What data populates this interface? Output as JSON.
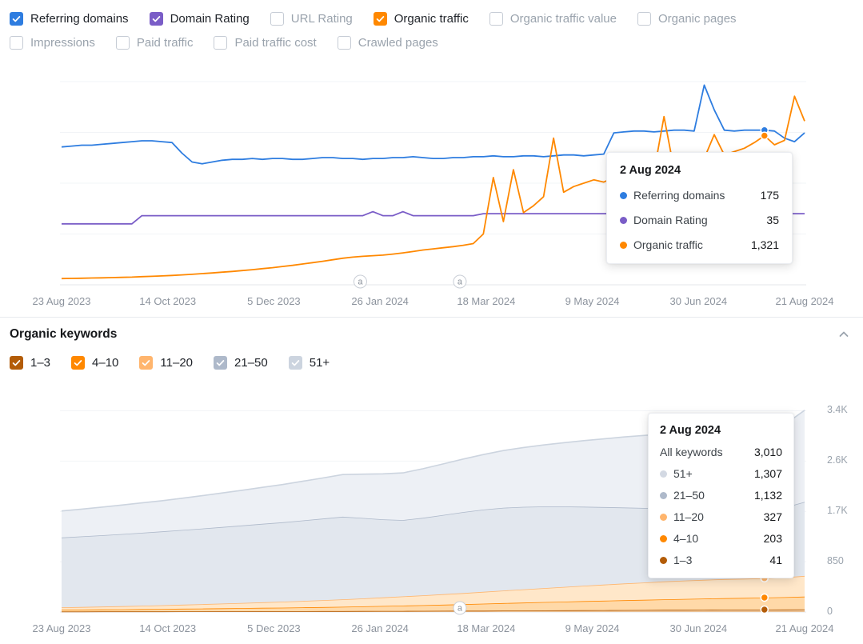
{
  "metrics_toolbar": {
    "row1": [
      {
        "label": "Referring domains",
        "checked": true,
        "color": "#2e7de0"
      },
      {
        "label": "Domain Rating",
        "checked": true,
        "color": "#7a5dc7"
      },
      {
        "label": "URL Rating",
        "checked": false,
        "color": ""
      },
      {
        "label": "Organic traffic",
        "checked": true,
        "color": "#ff8800"
      },
      {
        "label": "Organic traffic value",
        "checked": false,
        "color": ""
      },
      {
        "label": "Organic pages",
        "checked": false,
        "color": ""
      }
    ],
    "row2": [
      {
        "label": "Impressions",
        "checked": false,
        "color": ""
      },
      {
        "label": "Paid traffic",
        "checked": false,
        "color": ""
      },
      {
        "label": "Paid traffic cost",
        "checked": false,
        "color": ""
      },
      {
        "label": "Crawled pages",
        "checked": false,
        "color": ""
      }
    ]
  },
  "keywords_section": {
    "title": "Organic keywords",
    "filters": [
      {
        "label": "1–3",
        "checked": true,
        "color": "#b35c08"
      },
      {
        "label": "4–10",
        "checked": true,
        "color": "#ff8800"
      },
      {
        "label": "11–20",
        "checked": true,
        "color": "#ffb56d"
      },
      {
        "label": "21–50",
        "checked": true,
        "color": "#aeb9ca"
      },
      {
        "label": "51+",
        "checked": true,
        "color": "#ccd4df"
      }
    ]
  },
  "chart_data": [
    {
      "type": "line",
      "x_tick_labels": [
        "23 Aug 2023",
        "14 Oct 2023",
        "5 Dec 2023",
        "26 Jan 2024",
        "18 Mar 2024",
        "9 May 2024",
        "30 Jun 2024",
        "21 Aug 2024"
      ],
      "grid": true,
      "marker_f": 0.948,
      "marker_date": "2 Aug 2024",
      "annotations": [
        {
          "label": "a",
          "f": 0.402
        },
        {
          "label": "a",
          "f": 0.536
        }
      ],
      "series": [
        {
          "name": "Referring domains",
          "color": "#2e7de0",
          "ylim": [
            0,
            230
          ],
          "values": [
            156,
            157,
            158,
            158,
            159,
            160,
            161,
            162,
            163,
            163,
            162,
            161,
            149,
            139,
            137,
            139,
            141,
            142,
            142,
            143,
            142,
            143,
            143,
            142,
            142,
            143,
            144,
            144,
            143,
            143,
            142,
            143,
            143,
            144,
            144,
            145,
            144,
            143,
            143,
            144,
            144,
            145,
            145,
            146,
            145,
            145,
            146,
            146,
            145,
            146,
            147,
            147,
            146,
            147,
            148,
            172,
            173,
            174,
            174,
            173,
            174,
            175,
            175,
            174,
            226,
            198,
            175,
            174,
            175,
            175,
            175,
            174,
            166,
            162,
            172
          ]
        },
        {
          "name": "Domain Rating",
          "color": "#7a5dc7",
          "ylim": [
            0,
            100
          ],
          "values": [
            30,
            30,
            30,
            30,
            30,
            30,
            30,
            30,
            34,
            34,
            34,
            34,
            34,
            34,
            34,
            34,
            34,
            34,
            34,
            34,
            34,
            34,
            34,
            34,
            34,
            34,
            34,
            34,
            34,
            34,
            34,
            36,
            34,
            34,
            36,
            34,
            34,
            34,
            34,
            34,
            34,
            34,
            35,
            35,
            35,
            35,
            35,
            35,
            35,
            35,
            35,
            35,
            35,
            35,
            35,
            35,
            35,
            35,
            35,
            35,
            35,
            35,
            35,
            35,
            35,
            35,
            35,
            35,
            35,
            35,
            35,
            35,
            35,
            35,
            35
          ]
        },
        {
          "name": "Organic traffic",
          "color": "#ff8800",
          "ylim": [
            0,
            1800
          ],
          "values": [
            55,
            57,
            58,
            60,
            62,
            64,
            66,
            68,
            72,
            75,
            79,
            83,
            88,
            93,
            99,
            105,
            112,
            118,
            126,
            134,
            143,
            152,
            162,
            172,
            184,
            196,
            208,
            222,
            235,
            245,
            252,
            258,
            263,
            272,
            283,
            295,
            308,
            318,
            328,
            338,
            350,
            365,
            450,
            950,
            560,
            1020,
            640,
            700,
            780,
            1300,
            820,
            870,
            900,
            930,
            910,
            950,
            940,
            960,
            980,
            1000,
            1490,
            1020,
            1060,
            1100,
            1120,
            1330,
            1150,
            1180,
            1210,
            1260,
            1321,
            1240,
            1280,
            1670,
            1450
          ]
        }
      ]
    },
    {
      "type": "stacked_area",
      "x_tick_labels": [
        "23 Aug 2023",
        "14 Oct 2023",
        "5 Dec 2023",
        "26 Jan 2024",
        "18 Mar 2024",
        "9 May 2024",
        "30 Jun 2024",
        "21 Aug 2024"
      ],
      "y_tick_labels": [
        {
          "v": 3400,
          "label": "3.4K"
        },
        {
          "v": 2550,
          "label": "2.6K"
        },
        {
          "v": 1700,
          "label": "1.7K"
        },
        {
          "v": 850,
          "label": "850"
        },
        {
          "v": 0,
          "label": "0"
        }
      ],
      "ymax": 3650,
      "marker_f": 0.948,
      "marker_date": "2 Aug 2024",
      "annotations": [
        {
          "label": "a",
          "f": 0.536
        }
      ],
      "stack_order_note": "series listed bottom to top",
      "series": [
        {
          "name": "1–3",
          "color": "#b35c08",
          "fill": "#eac296",
          "values": [
            8,
            8,
            9,
            9,
            10,
            10,
            11,
            11,
            12,
            12,
            13,
            13,
            14,
            15,
            15,
            16,
            17,
            18,
            19,
            20,
            21,
            22,
            24,
            25,
            27,
            28,
            30,
            31,
            33,
            34,
            36,
            37,
            38,
            39,
            40,
            41,
            42,
            45
          ]
        },
        {
          "name": "4–10",
          "color": "#ff8800",
          "fill": "#ffd9a8",
          "values": [
            30,
            32,
            34,
            36,
            38,
            41,
            44,
            47,
            50,
            54,
            57,
            60,
            64,
            68,
            73,
            78,
            84,
            90,
            96,
            103,
            110,
            118,
            126,
            133,
            140,
            147,
            154,
            160,
            166,
            172,
            178,
            184,
            189,
            194,
            198,
            203,
            208,
            215
          ]
        },
        {
          "name": "11–20",
          "color": "#ffb56d",
          "fill": "#ffe7c9",
          "values": [
            40,
            44,
            48,
            52,
            57,
            62,
            68,
            74,
            80,
            87,
            94,
            101,
            109,
            117,
            126,
            135,
            145,
            155,
            166,
            177,
            188,
            200,
            212,
            224,
            236,
            248,
            260,
            271,
            282,
            292,
            302,
            310,
            317,
            322,
            325,
            327,
            335,
            350
          ]
        },
        {
          "name": "21–50",
          "color": "#aeb9ca",
          "fill": "#e2e7ee",
          "values": [
            1180,
            1193,
            1206,
            1220,
            1234,
            1248,
            1262,
            1278,
            1294,
            1310,
            1326,
            1342,
            1360,
            1378,
            1396,
            1360,
            1320,
            1290,
            1310,
            1340,
            1370,
            1390,
            1400,
            1395,
            1380,
            1360,
            1335,
            1310,
            1285,
            1260,
            1235,
            1210,
            1188,
            1168,
            1150,
            1132,
            1180,
            1250
          ]
        },
        {
          "name": "51+",
          "color": "#ccd4df",
          "fill": "#edf0f5",
          "values": [
            450,
            462,
            475,
            490,
            505,
            520,
            538,
            556,
            575,
            595,
            616,
            638,
            662,
            686,
            712,
            740,
            768,
            798,
            830,
            862,
            896,
            930,
            966,
            1002,
            1040,
            1078,
            1116,
            1154,
            1192,
            1226,
            1256,
            1280,
            1296,
            1304,
            1307,
            1307,
            1400,
            1550
          ]
        }
      ]
    }
  ],
  "tooltips": [
    {
      "date": "2 Aug 2024",
      "rows": [
        {
          "label": "Referring domains",
          "value": "175",
          "color": "#2e7de0"
        },
        {
          "label": "Domain Rating",
          "value": "35",
          "color": "#7a5dc7"
        },
        {
          "label": "Organic traffic",
          "value": "1,321",
          "color": "#ff8800"
        }
      ]
    },
    {
      "date": "2 Aug 2024",
      "total_label": "All keywords",
      "total_value": "3,010",
      "rows": [
        {
          "label": "51+",
          "value": "1,307",
          "color": "#d3d9e3"
        },
        {
          "label": "21–50",
          "value": "1,132",
          "color": "#aeb9ca"
        },
        {
          "label": "11–20",
          "value": "327",
          "color": "#ffb56d"
        },
        {
          "label": "4–10",
          "value": "203",
          "color": "#ff8800"
        },
        {
          "label": "1–3",
          "value": "41",
          "color": "#b35c08"
        }
      ]
    }
  ]
}
